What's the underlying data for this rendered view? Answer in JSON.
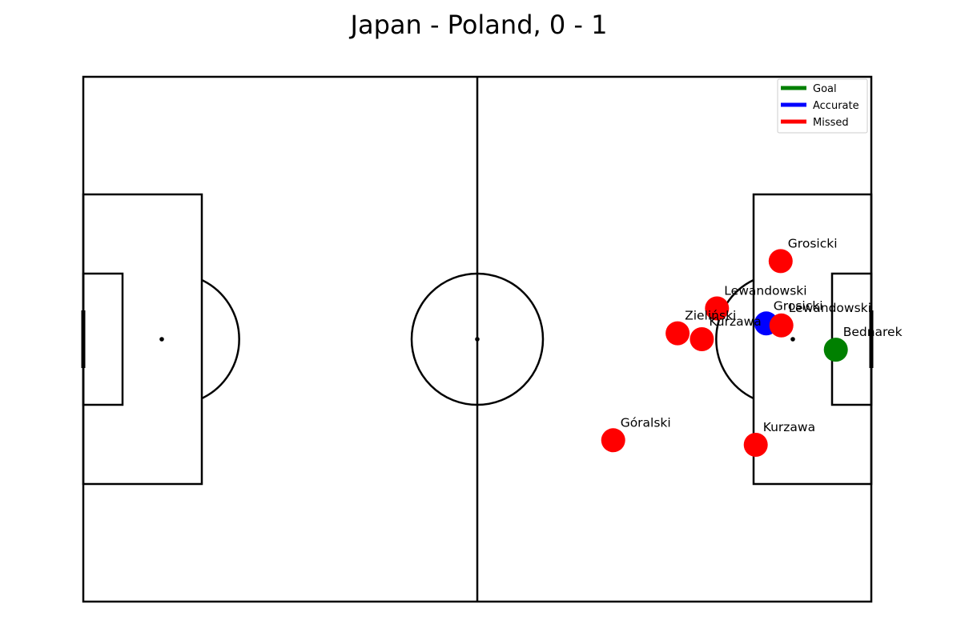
{
  "chart_data": {
    "type": "scatter",
    "title": "Japan - Poland, 0 - 1",
    "xlim": [
      0,
      120
    ],
    "ylim": [
      0,
      80
    ],
    "legend": {
      "placement": "top-right",
      "entries": [
        {
          "label": "Goal",
          "color": "#008000"
        },
        {
          "label": "Accurate",
          "color": "#0000ff"
        },
        {
          "label": "Missed",
          "color": "#ff0000"
        }
      ]
    },
    "shots": [
      {
        "player": "Grosicki",
        "x": 106.2,
        "y": 51.9,
        "outcome": "Missed"
      },
      {
        "player": "Lewandowski",
        "x": 96.5,
        "y": 44.7,
        "outcome": "Missed"
      },
      {
        "player": "Zieliński",
        "x": 90.5,
        "y": 40.9,
        "outcome": "Missed"
      },
      {
        "player": "Kurzawa",
        "x": 94.2,
        "y": 40.0,
        "outcome": "Missed"
      },
      {
        "player": "Grosicki",
        "x": 104.0,
        "y": 42.4,
        "outcome": "Accurate"
      },
      {
        "player": "Lewandowski",
        "x": 106.3,
        "y": 42.1,
        "outcome": "Missed"
      },
      {
        "player": "Bednarek",
        "x": 114.6,
        "y": 38.4,
        "outcome": "Goal"
      },
      {
        "player": "Góralski",
        "x": 80.7,
        "y": 24.6,
        "outcome": "Missed"
      },
      {
        "player": "Kurzawa",
        "x": 102.4,
        "y": 23.9,
        "outcome": "Missed"
      }
    ]
  }
}
